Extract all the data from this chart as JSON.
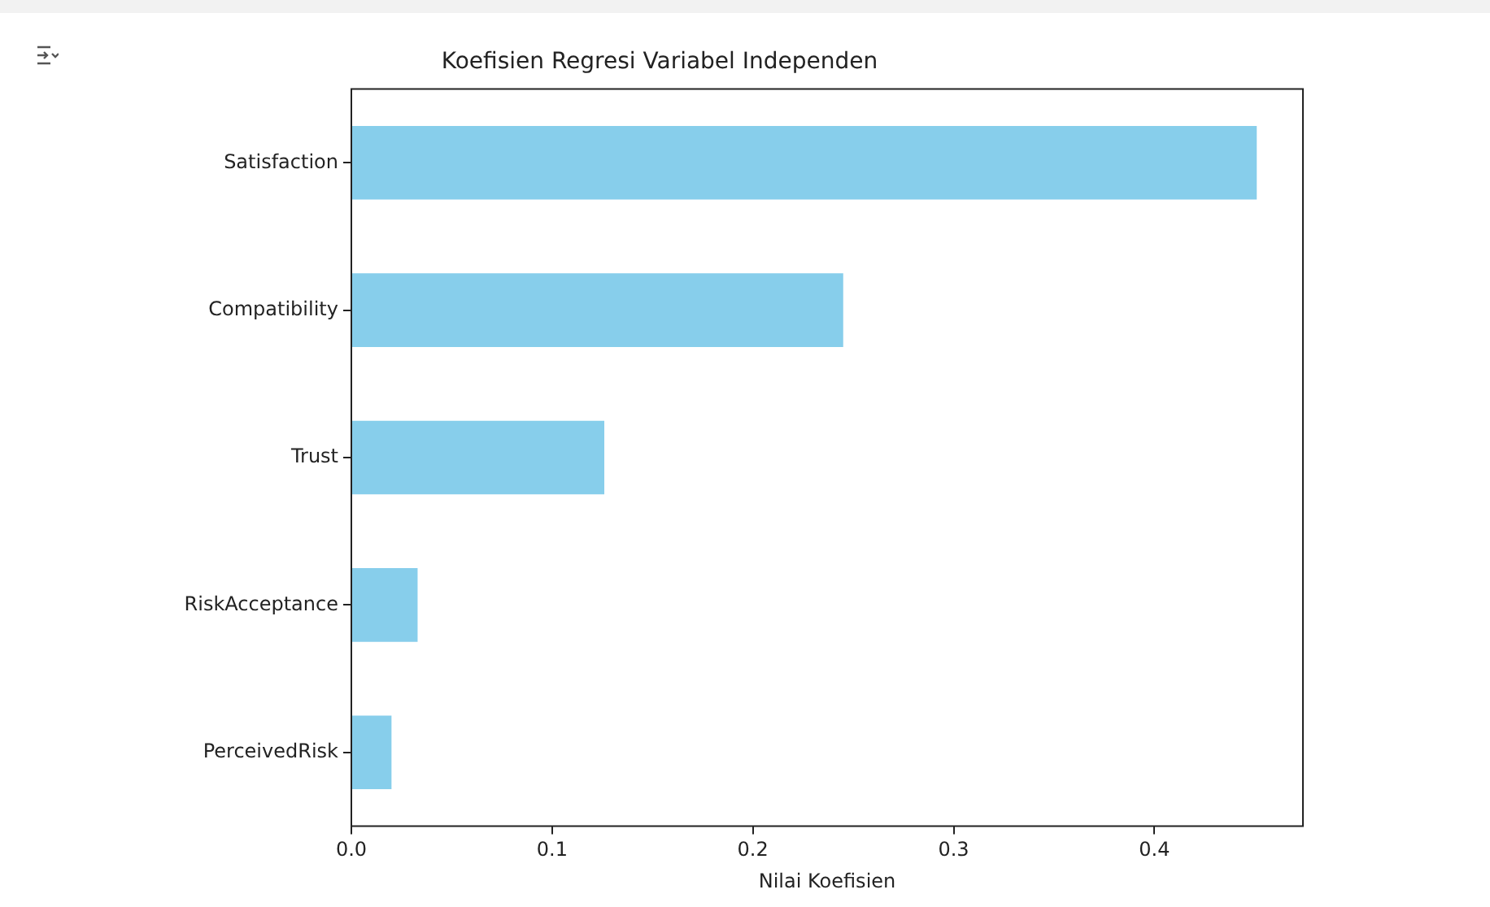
{
  "chart_data": {
    "type": "bar",
    "orientation": "horizontal",
    "title": "Koefisien Regresi Variabel Independen",
    "xlabel": "Nilai Koefisien",
    "categories": [
      "Satisfaction",
      "Compatibility",
      "Trust",
      "RiskAcceptance",
      "PerceivedRisk"
    ],
    "values": [
      0.451,
      0.245,
      0.126,
      0.033,
      0.02
    ],
    "color": "#87ceeb",
    "xlim": [
      0,
      0.474
    ],
    "xticks": [
      {
        "value": 0,
        "label": "0.0"
      },
      {
        "value": 0.1,
        "label": "0.1"
      },
      {
        "value": 0.2,
        "label": "0.2"
      },
      {
        "value": 0.3,
        "label": "0.3"
      },
      {
        "value": 0.4,
        "label": "0.4"
      }
    ]
  }
}
